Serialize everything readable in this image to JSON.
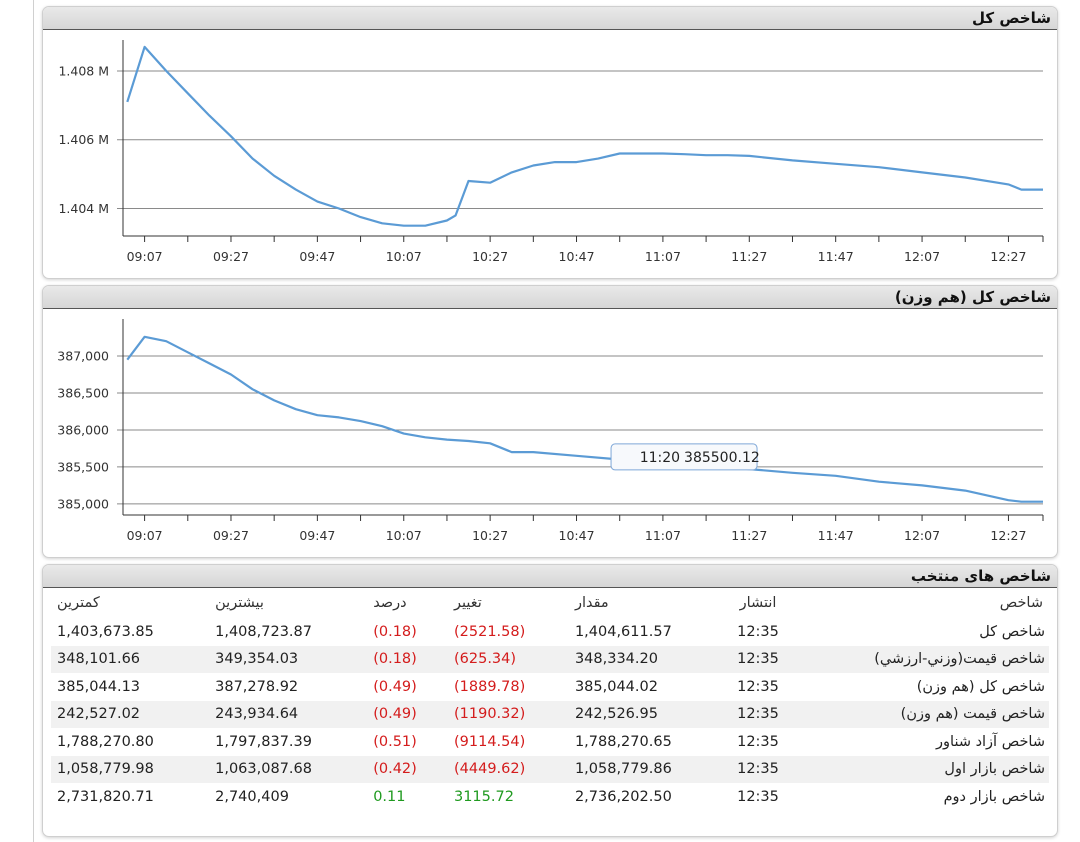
{
  "colors": {
    "line": "#5b9bd5",
    "negative": "#d41c1c",
    "positive": "#1f9a1f"
  },
  "panels": {
    "total_index_title": "شاخص کل",
    "equal_weight_title": "شاخص کل (هم وزن)",
    "selected_indices_title": "شاخص های منتخب"
  },
  "chart_data": [
    {
      "type": "line",
      "title": "شاخص کل",
      "ylim": [
        1403200,
        1408900
      ],
      "y_ticks": [
        {
          "value": 1404000,
          "label": "1.404 M"
        },
        {
          "value": 1406000,
          "label": "1.406 M"
        },
        {
          "value": 1408000,
          "label": "1.408 M"
        }
      ],
      "x_ticks": [
        "09:07",
        "09:27",
        "09:47",
        "10:07",
        "10:27",
        "10:47",
        "11:07",
        "11:27",
        "11:47",
        "12:07",
        "12:27"
      ],
      "x_start": "09:02",
      "x_end": "12:35",
      "series": [
        {
          "points": [
            [
              "09:03",
              1407100
            ],
            [
              "09:07",
              1408700
            ],
            [
              "09:12",
              1408000
            ],
            [
              "09:17",
              1407350
            ],
            [
              "09:22",
              1406700
            ],
            [
              "09:27",
              1406100
            ],
            [
              "09:32",
              1405450
            ],
            [
              "09:37",
              1404950
            ],
            [
              "09:42",
              1404550
            ],
            [
              "09:47",
              1404200
            ],
            [
              "09:52",
              1404000
            ],
            [
              "09:57",
              1403750
            ],
            [
              "10:02",
              1403570
            ],
            [
              "10:07",
              1403500
            ],
            [
              "10:12",
              1403500
            ],
            [
              "10:17",
              1403650
            ],
            [
              "10:19",
              1403800
            ],
            [
              "10:22",
              1404800
            ],
            [
              "10:27",
              1404750
            ],
            [
              "10:32",
              1405050
            ],
            [
              "10:37",
              1405250
            ],
            [
              "10:42",
              1405350
            ],
            [
              "10:47",
              1405350
            ],
            [
              "10:52",
              1405450
            ],
            [
              "10:57",
              1405600
            ],
            [
              "11:07",
              1405600
            ],
            [
              "11:12",
              1405580
            ],
            [
              "11:17",
              1405550
            ],
            [
              "11:22",
              1405550
            ],
            [
              "11:27",
              1405530
            ],
            [
              "11:37",
              1405400
            ],
            [
              "11:47",
              1405300
            ],
            [
              "11:57",
              1405200
            ],
            [
              "12:07",
              1405050
            ],
            [
              "12:17",
              1404900
            ],
            [
              "12:27",
              1404700
            ],
            [
              "12:30",
              1404550
            ],
            [
              "12:35",
              1404550
            ]
          ]
        }
      ]
    },
    {
      "type": "line",
      "title": "شاخص کل (هم وزن)",
      "ylim": [
        384850,
        387500
      ],
      "y_ticks": [
        {
          "value": 385000,
          "label": "385,000"
        },
        {
          "value": 385500,
          "label": "385,500"
        },
        {
          "value": 386000,
          "label": "386,000"
        },
        {
          "value": 386500,
          "label": "386,500"
        },
        {
          "value": 387000,
          "label": "387,000"
        }
      ],
      "x_ticks": [
        "09:07",
        "09:27",
        "09:47",
        "10:07",
        "10:27",
        "10:47",
        "11:07",
        "11:27",
        "11:47",
        "12:07",
        "12:27"
      ],
      "x_start": "09:02",
      "x_end": "12:35",
      "series": [
        {
          "points": [
            [
              "09:03",
              386950
            ],
            [
              "09:07",
              387260
            ],
            [
              "09:12",
              387200
            ],
            [
              "09:17",
              387050
            ],
            [
              "09:22",
              386900
            ],
            [
              "09:27",
              386750
            ],
            [
              "09:32",
              386550
            ],
            [
              "09:37",
              386400
            ],
            [
              "09:42",
              386280
            ],
            [
              "09:47",
              386200
            ],
            [
              "09:52",
              386170
            ],
            [
              "09:57",
              386120
            ],
            [
              "10:02",
              386050
            ],
            [
              "10:07",
              385950
            ],
            [
              "10:12",
              385900
            ],
            [
              "10:17",
              385870
            ],
            [
              "10:22",
              385850
            ],
            [
              "10:27",
              385820
            ],
            [
              "10:32",
              385700
            ],
            [
              "10:37",
              385700
            ],
            [
              "10:47",
              385650
            ],
            [
              "10:57",
              385600
            ],
            [
              "11:07",
              385560
            ],
            [
              "11:20",
              385500
            ],
            [
              "11:27",
              385470
            ],
            [
              "11:37",
              385420
            ],
            [
              "11:47",
              385380
            ],
            [
              "11:57",
              385300
            ],
            [
              "12:07",
              385250
            ],
            [
              "12:17",
              385180
            ],
            [
              "12:27",
              385050
            ],
            [
              "12:30",
              385030
            ],
            [
              "12:35",
              385030
            ]
          ]
        }
      ],
      "tooltip": {
        "time": "11:20",
        "value": "385500.12"
      }
    }
  ],
  "table": {
    "headers": {
      "name": "شاخص",
      "time": "انتشار",
      "value": "مقدار",
      "change": "تغییر",
      "percent": "درصد",
      "high": "بیشترین",
      "low": "کمترین"
    },
    "rows": [
      {
        "name": "شاخص کل",
        "time": "12:35",
        "value": "1,404,611.57",
        "change": "(2521.58)",
        "percent": "(0.18)",
        "high": "1,408,723.87",
        "low": "1,403,673.85",
        "dir": "neg"
      },
      {
        "name": "شاخص قيمت(وزني-ارزشي)",
        "time": "12:35",
        "value": "348,334.20",
        "change": "(625.34)",
        "percent": "(0.18)",
        "high": "349,354.03",
        "low": "348,101.66",
        "dir": "neg"
      },
      {
        "name": "شاخص کل (هم وزن)",
        "time": "12:35",
        "value": "385,044.02",
        "change": "(1889.78)",
        "percent": "(0.49)",
        "high": "387,278.92",
        "low": "385,044.13",
        "dir": "neg"
      },
      {
        "name": "شاخص قيمت (هم وزن)",
        "time": "12:35",
        "value": "242,526.95",
        "change": "(1190.32)",
        "percent": "(0.49)",
        "high": "243,934.64",
        "low": "242,527.02",
        "dir": "neg"
      },
      {
        "name": "شاخص آزاد شناور",
        "time": "12:35",
        "value": "1,788,270.65",
        "change": "(9114.54)",
        "percent": "(0.51)",
        "high": "1,797,837.39",
        "low": "1,788,270.80",
        "dir": "neg"
      },
      {
        "name": "شاخص بازار اول",
        "time": "12:35",
        "value": "1,058,779.86",
        "change": "(4449.62)",
        "percent": "(0.42)",
        "high": "1,063,087.68",
        "low": "1,058,779.98",
        "dir": "neg"
      },
      {
        "name": "شاخص بازار دوم",
        "time": "12:35",
        "value": "2,736,202.50",
        "change": "3115.72",
        "percent": "0.11",
        "high": "2,740,409",
        "low": "2,731,820.71",
        "dir": "pos"
      }
    ]
  }
}
